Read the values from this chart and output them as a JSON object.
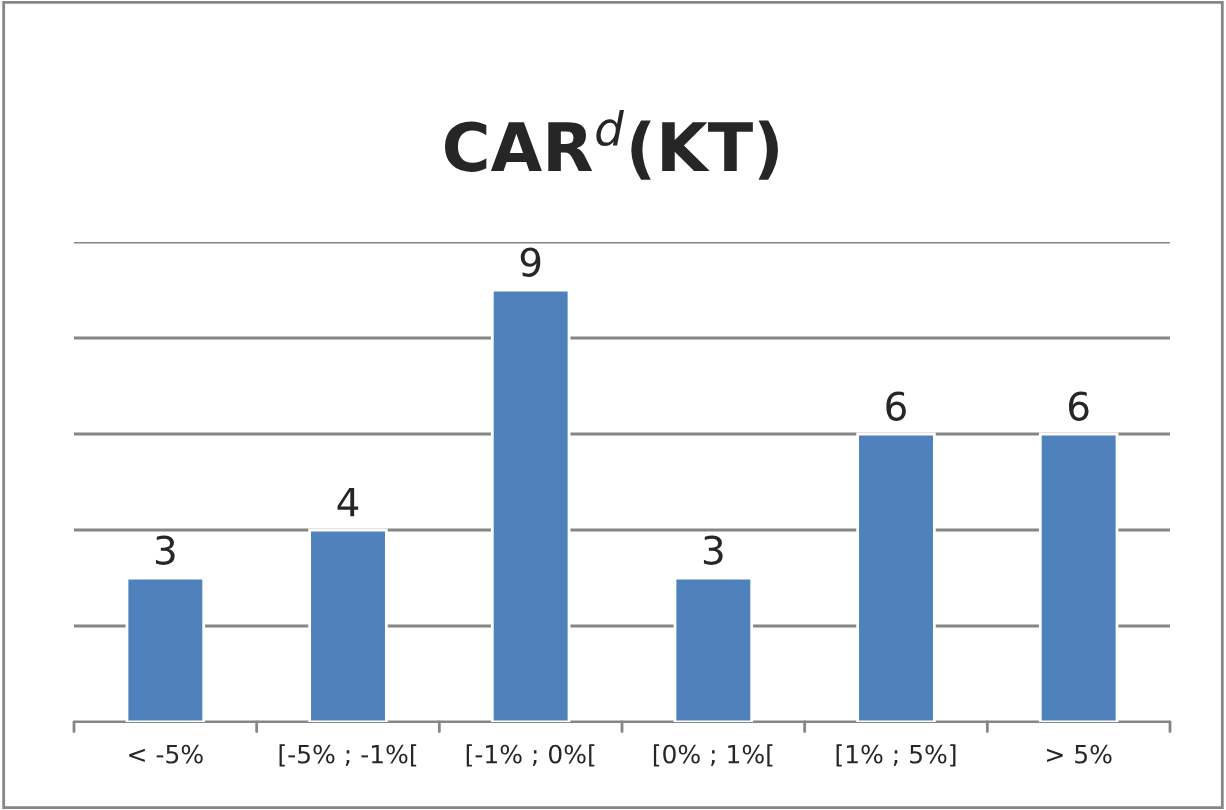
{
  "chart_data": {
    "type": "bar",
    "title": "CAR$^{d}$(KT)",
    "categories": [
      "< -5%",
      "[-5% ; -1%[",
      "[-1% ; 0%[",
      "[0% ; 1%[",
      "[1% ; 5%]",
      "> 5%"
    ],
    "values": [
      3,
      4,
      9,
      3,
      6,
      6
    ],
    "color": "#4f81bd",
    "ylim": [
      0,
      10
    ],
    "yticks": [
      {
        "value": 0,
        "label": null
      },
      {
        "value": 2,
        "label": null
      },
      {
        "value": 4,
        "label": null
      },
      {
        "value": 6,
        "label": null
      },
      {
        "value": 8,
        "label": null
      },
      {
        "value": 10,
        "label": null
      }
    ],
    "tick_labels": "x",
    "grid": "y",
    "data_labels": true,
    "legend": false
  }
}
